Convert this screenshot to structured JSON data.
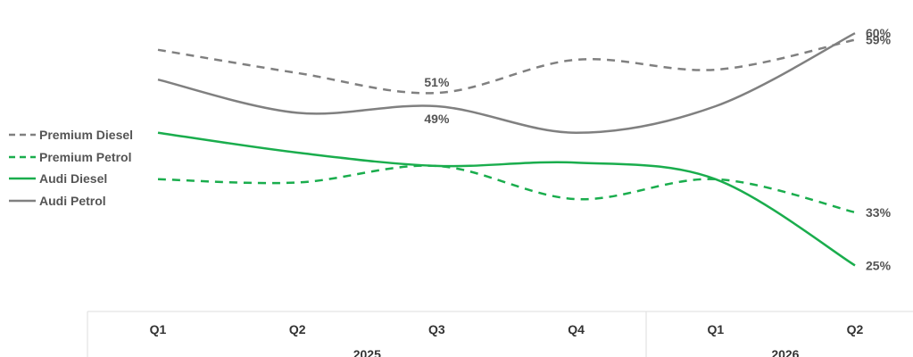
{
  "chart_data": {
    "type": "line",
    "categories": [
      "Q1",
      "Q2",
      "Q3",
      "Q4",
      "Q1",
      "Q2"
    ],
    "category_groups": [
      {
        "label": "2025",
        "span": [
          "Q1",
          "Q2",
          "Q3",
          "Q4"
        ]
      },
      {
        "label": "2026",
        "span": [
          "Q1",
          "Q2"
        ]
      }
    ],
    "series": [
      {
        "name": "Premium Diesel",
        "color": "#808080",
        "dash": "dashed",
        "values": [
          57.5,
          54,
          51,
          56,
          54.5,
          59
        ],
        "labels": [
          {
            "index": 2,
            "text": "51%"
          },
          {
            "index": 5,
            "text": "59%"
          }
        ]
      },
      {
        "name": "Premium Petrol",
        "color": "#1aad4d",
        "dash": "dashed",
        "values": [
          38,
          37.5,
          40,
          35,
          38,
          33
        ],
        "labels": [
          {
            "index": 5,
            "text": "33%"
          }
        ]
      },
      {
        "name": "Audi Diesel",
        "color": "#1aad4d",
        "dash": "solid",
        "values": [
          45,
          42,
          40,
          40.5,
          38,
          25
        ],
        "labels": [
          {
            "index": 5,
            "text": "25%"
          }
        ]
      },
      {
        "name": "Audi Petrol",
        "color": "#808080",
        "dash": "solid",
        "values": [
          53,
          48,
          49,
          45,
          49,
          60
        ],
        "labels": [
          {
            "index": 2,
            "text": "49%"
          },
          {
            "index": 5,
            "text": "60%"
          }
        ]
      }
    ],
    "ylim": [
      20,
      65
    ],
    "grid": false,
    "legend_position": "left"
  }
}
